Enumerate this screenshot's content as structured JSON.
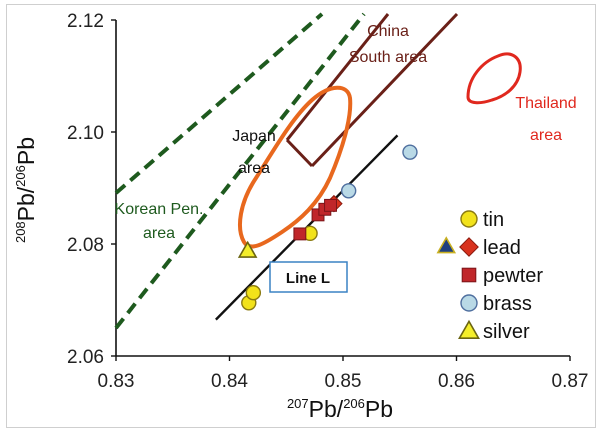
{
  "chart_data": {
    "type": "scatter",
    "xlim": [
      0.83,
      0.87
    ],
    "ylim": [
      2.06,
      2.12
    ],
    "x_ticks": [
      "0.83",
      "0.84",
      "0.85",
      "0.86",
      "0.87"
    ],
    "y_ticks": [
      "2.06",
      "2.08",
      "2.10",
      "2.12"
    ],
    "xlabel": {
      "sup": "207",
      "base1": "Pb/",
      "sup2": "206",
      "base2": "Pb"
    },
    "ylabel": {
      "sup": "208",
      "base1": "Pb/",
      "sup2": "206",
      "base2": "Pb"
    },
    "grid": false,
    "legend_position": "bottom-right",
    "series": [
      {
        "name": "tin",
        "marker": "circle",
        "color": "#f2e21a",
        "stroke": "#8a7a10",
        "points": [
          [
            0.8417,
            2.0695
          ],
          [
            0.8421,
            2.0713
          ],
          [
            0.8471,
            2.0819
          ]
        ]
      },
      {
        "name": "lead",
        "marker": "diamond",
        "color": "#d8321e",
        "stroke": "#8a1a0e",
        "points": [
          [
            0.8492,
            2.0872
          ]
        ]
      },
      {
        "name": "pewter",
        "marker": "square",
        "color": "#c0262a",
        "stroke": "#7a1418",
        "points": [
          [
            0.8462,
            2.0818
          ],
          [
            0.8478,
            2.0852
          ],
          [
            0.8484,
            2.0862
          ],
          [
            0.8489,
            2.0869
          ]
        ]
      },
      {
        "name": "brass",
        "marker": "circle",
        "color": "#b9d9e6",
        "stroke": "#4f6f9f",
        "points": [
          [
            0.8505,
            2.0895
          ],
          [
            0.8559,
            2.0964
          ]
        ]
      },
      {
        "name": "silver",
        "marker": "triangle",
        "color": "#f4ee2a",
        "stroke": "#6b6512",
        "points": [
          [
            0.8416,
            2.0788
          ]
        ]
      }
    ],
    "extra_marker": {
      "marker": "triangle",
      "color": "#1f3f7f",
      "stroke": "#c9b020",
      "point": [
        0.8591,
        2.0796
      ]
    },
    "regression_line": {
      "label": "Line L",
      "from": [
        0.8388,
        2.0665
      ],
      "to": [
        0.8548,
        2.0994
      ],
      "color": "#111111"
    },
    "regions": [
      {
        "label_lines": [
          "China",
          "South area"
        ],
        "color": "#6a2018",
        "type": "band",
        "label_color": "#6a2018"
      },
      {
        "label_lines": [
          "Thailand",
          "area"
        ],
        "color": "#e0281e",
        "type": "blob",
        "label_color": "#e0281e"
      },
      {
        "label_lines": [
          "Japan",
          "area"
        ],
        "color": "#e8681e",
        "type": "blob",
        "label_color": "#111111"
      },
      {
        "label_lines": [
          "Korean Pen.",
          "area"
        ],
        "color": "#1e5a1e",
        "type": "dashed-band",
        "label_color": "#1e5a1e"
      }
    ]
  }
}
